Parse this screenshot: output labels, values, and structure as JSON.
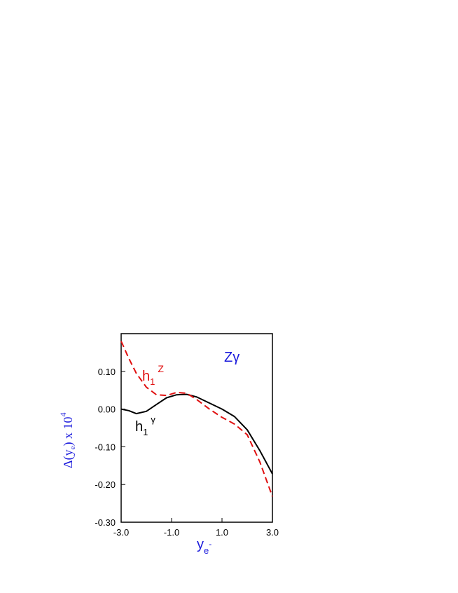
{
  "chart_data": {
    "type": "line",
    "x": [
      -3.0,
      -2.7,
      -2.4,
      -2.0,
      -1.6,
      -1.2,
      -0.8,
      -0.4,
      0.0,
      0.5,
      1.0,
      1.5,
      2.0,
      2.5,
      3.0
    ],
    "series": [
      {
        "color": "#000000",
        "dash": "solid",
        "values": [
          0.0,
          -0.004,
          -0.012,
          -0.006,
          0.012,
          0.03,
          0.038,
          0.039,
          0.032,
          0.016,
          0.0,
          -0.02,
          -0.055,
          -0.11,
          -0.172
        ]
      },
      {
        "color": "#e01010",
        "dash": "dashed",
        "values": [
          0.18,
          0.135,
          0.095,
          0.058,
          0.038,
          0.036,
          0.044,
          0.042,
          0.025,
          0.0,
          -0.022,
          -0.04,
          -0.068,
          -0.14,
          -0.232
        ]
      }
    ],
    "xlim": [
      -3.0,
      3.0
    ],
    "ylim": [
      -0.3,
      0.2
    ],
    "xticks": [
      {
        "value": -3,
        "label": "-3.0"
      },
      {
        "value": -1,
        "label": "-1.0"
      },
      {
        "value": 1,
        "label": "1.0"
      },
      {
        "value": 3,
        "label": "3.0"
      }
    ],
    "yticks": [
      {
        "value": 0.1,
        "label": "0.10"
      },
      {
        "value": 0,
        "label": "0.00"
      },
      {
        "value": -0.1,
        "label": "-0.10"
      },
      {
        "value": -0.2,
        "label": "-0.20"
      },
      {
        "value": -0.3,
        "label": "-0.30"
      }
    ],
    "y_label": {
      "main": "Δ(y",
      "sub": "e",
      "rest": ") x 10",
      "sup": "4"
    },
    "x_label": {
      "main": "y",
      "sub": "e",
      "sup": "-"
    },
    "annotations": {
      "process": "Zγ",
      "h1z": {
        "main": "h",
        "sub": "1",
        "sup": "Z"
      },
      "h1g": {
        "main": "h",
        "sub": "1",
        "sup": "γ"
      }
    }
  }
}
